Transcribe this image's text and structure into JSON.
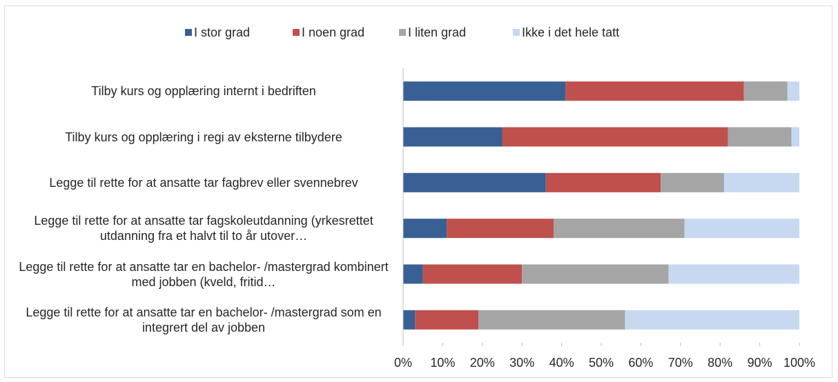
{
  "chart_data": {
    "type": "stacked_barh",
    "categories": [
      "Tilby kurs og opplæring internt i bedriften",
      "Tilby kurs og opplæring i regi av eksterne tilbydere",
      "Legge til rette for at ansatte tar fagbrev eller svennebrev",
      "Legge til rette for at ansatte tar fagskoleutdanning (yrkesrettet utdanning fra et halvt til to år utover…",
      "Legge til rette for at ansatte tar en bachelor- /mastergrad kombinert med jobben (kveld, fritid…",
      "Legge til rette for at ansatte tar en bachelor- /mastergrad som en integrert del av jobben"
    ],
    "series": [
      {
        "name": "I stor grad",
        "color": "#386094",
        "values": [
          41,
          25,
          36,
          11,
          5,
          3
        ]
      },
      {
        "name": "I noen grad",
        "color": "#c0504d",
        "values": [
          45,
          57,
          29,
          27,
          25,
          16
        ]
      },
      {
        "name": "I liten grad",
        "color": "#a5a5a5",
        "values": [
          11,
          16,
          16,
          33,
          37,
          37
        ]
      },
      {
        "name": "Ikke i det hele tatt",
        "color": "#c6d9f1",
        "values": [
          3,
          2,
          19,
          29,
          33,
          44
        ]
      }
    ],
    "xlim": [
      0,
      100
    ],
    "xticks": [
      {
        "value": 0,
        "label": "0%"
      },
      {
        "value": 10,
        "label": "10%"
      },
      {
        "value": 20,
        "label": "20%"
      },
      {
        "value": 30,
        "label": "30%"
      },
      {
        "value": 40,
        "label": "40%"
      },
      {
        "value": 50,
        "label": "50%"
      },
      {
        "value": 60,
        "label": "60%"
      },
      {
        "value": 70,
        "label": "70%"
      },
      {
        "value": 80,
        "label": "80%"
      },
      {
        "value": 90,
        "label": "90%"
      },
      {
        "value": 100,
        "label": "100%"
      }
    ],
    "legend": "top"
  }
}
